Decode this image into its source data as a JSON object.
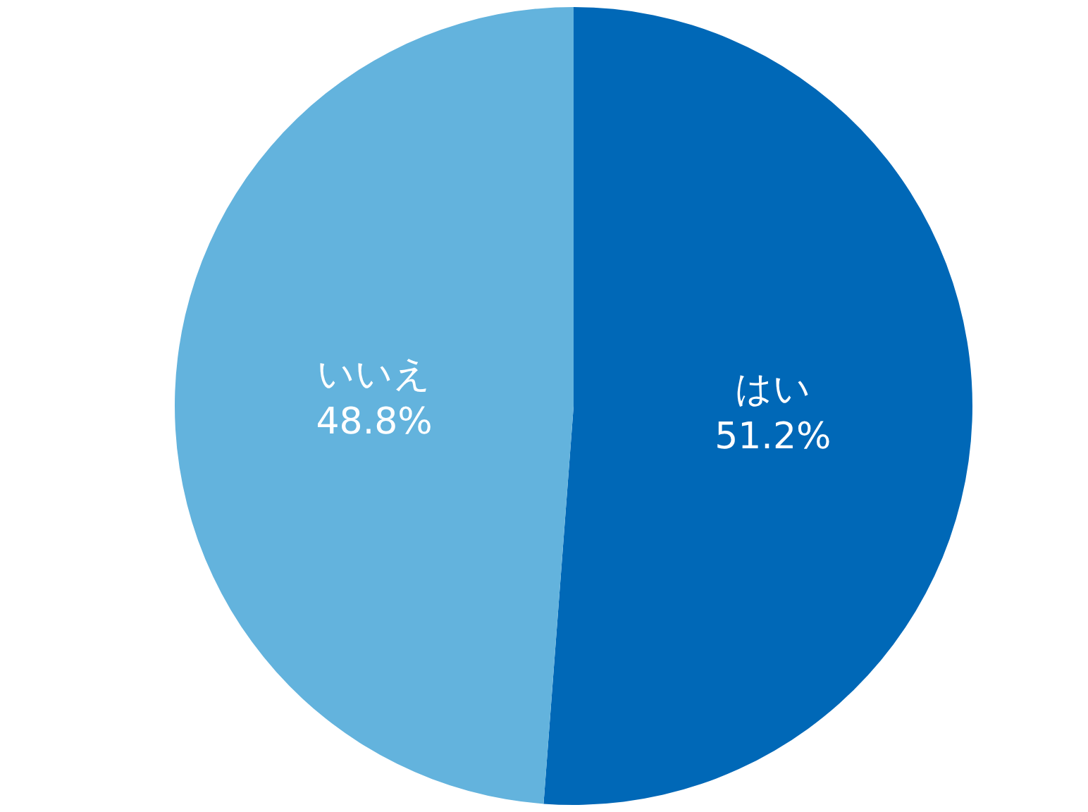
{
  "chart_data": {
    "type": "pie",
    "categories": [
      "はい",
      "いいえ"
    ],
    "values": [
      51.2,
      48.8
    ],
    "value_labels": [
      "51.2%",
      "48.8%"
    ],
    "colors": [
      "#0068b7",
      "#63b3dd"
    ],
    "legend": false
  }
}
